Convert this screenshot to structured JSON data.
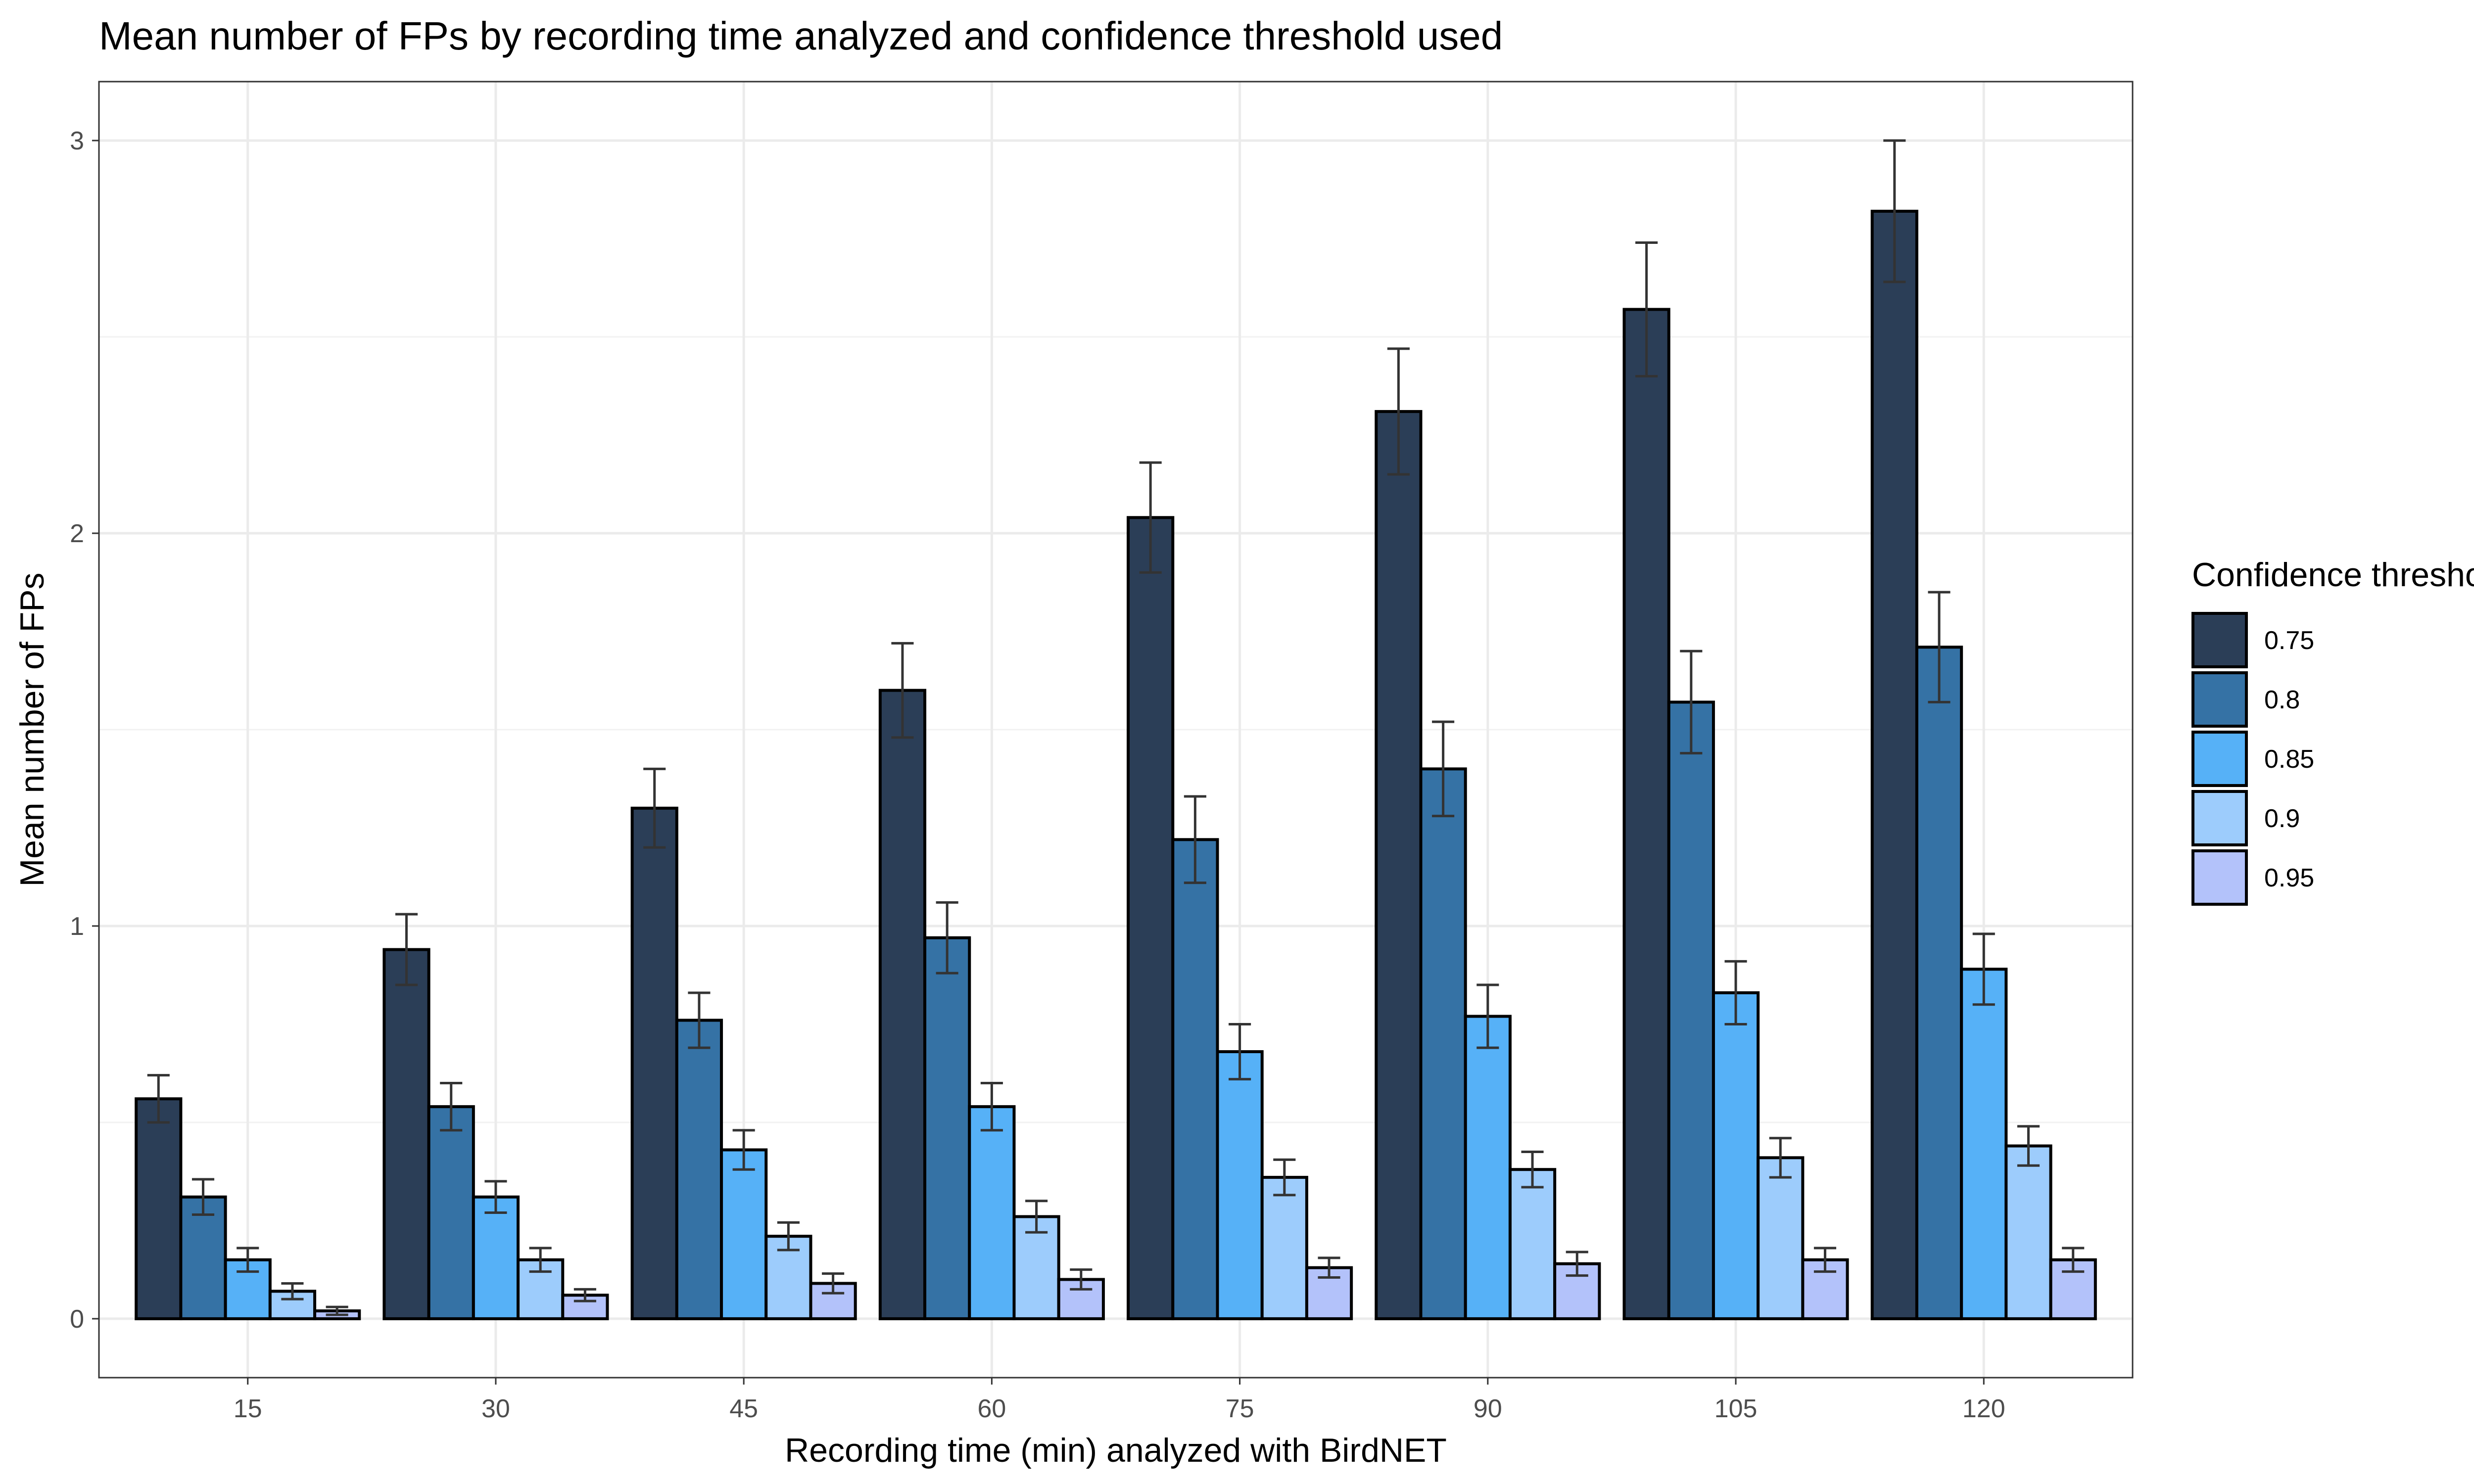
{
  "chart_data": {
    "type": "bar",
    "title": "Mean number of FPs by recording time analyzed and confidence threshold used",
    "xlabel": "Recording time (min) analyzed with BirdNET",
    "ylabel": "Mean number of FPs",
    "categories": [
      "15",
      "30",
      "45",
      "60",
      "75",
      "90",
      "105",
      "120"
    ],
    "y_ticks": [
      "0",
      "1",
      "2",
      "3"
    ],
    "ylim": [
      -0.15,
      3.15
    ],
    "grid": true,
    "legend": {
      "title": "Confidence threshold",
      "position": "right"
    },
    "series": [
      {
        "name": "0.75",
        "color": "#2b3e57",
        "values": [
          0.56,
          0.94,
          1.3,
          1.6,
          2.04,
          2.31,
          2.57,
          2.82
        ],
        "error": [
          0.06,
          0.09,
          0.1,
          0.12,
          0.14,
          0.16,
          0.17,
          0.18
        ]
      },
      {
        "name": "0.8",
        "color": "#3572a5",
        "values": [
          0.31,
          0.54,
          0.76,
          0.97,
          1.22,
          1.4,
          1.57,
          1.71
        ],
        "error": [
          0.045,
          0.06,
          0.07,
          0.09,
          0.11,
          0.12,
          0.13,
          0.14
        ]
      },
      {
        "name": "0.85",
        "color": "#56b1f7",
        "values": [
          0.15,
          0.31,
          0.43,
          0.54,
          0.68,
          0.77,
          0.83,
          0.89
        ],
        "error": [
          0.03,
          0.04,
          0.05,
          0.06,
          0.07,
          0.08,
          0.08,
          0.09
        ]
      },
      {
        "name": "0.9",
        "color": "#9dccfc",
        "values": [
          0.07,
          0.15,
          0.21,
          0.26,
          0.36,
          0.38,
          0.41,
          0.44
        ],
        "error": [
          0.02,
          0.03,
          0.035,
          0.04,
          0.045,
          0.045,
          0.05,
          0.05
        ]
      },
      {
        "name": "0.95",
        "color": "#b3c2fa",
        "values": [
          0.02,
          0.06,
          0.09,
          0.1,
          0.13,
          0.14,
          0.15,
          0.15
        ],
        "error": [
          0.01,
          0.015,
          0.025,
          0.025,
          0.025,
          0.03,
          0.03,
          0.03
        ]
      }
    ]
  }
}
